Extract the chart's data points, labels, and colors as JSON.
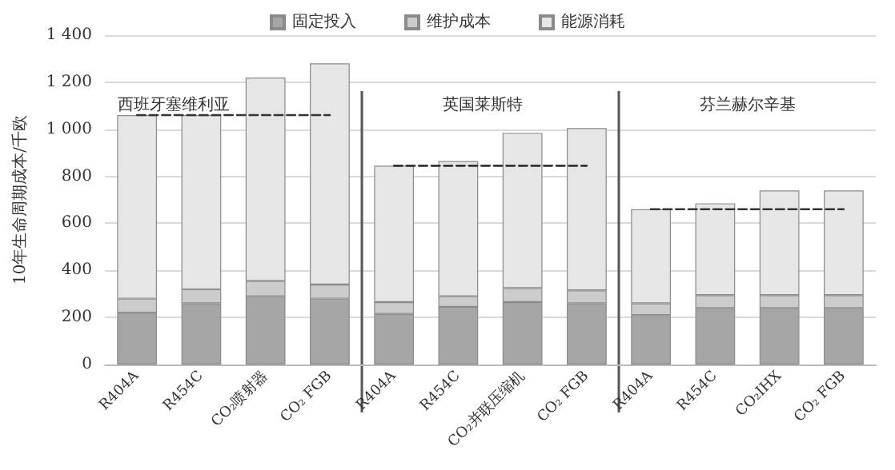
{
  "chart_data": {
    "type": "bar",
    "stacked": true,
    "ylabel": "10年生命周期成本/千欧",
    "categories": [
      "R404A",
      "R454C",
      "CO₂喷射器",
      "CO₂ FGB",
      "R404A",
      "R454C",
      "CO₂并联压缩机",
      "CO₂ FGB",
      "R404A",
      "R454C",
      "CO₂IHX",
      "CO₂ FGB"
    ],
    "series": [
      {
        "name": "固定投入",
        "color": "#a6a6a6",
        "values": [
          220,
          260,
          290,
          280,
          215,
          245,
          265,
          260,
          210,
          240,
          240,
          240
        ]
      },
      {
        "name": "维护成本",
        "color": "#cccccc",
        "values": [
          60,
          60,
          65,
          60,
          50,
          45,
          60,
          55,
          50,
          55,
          55,
          55
        ]
      },
      {
        "name": "能源消耗",
        "color": "#e6e6e6",
        "values": [
          780,
          740,
          865,
          940,
          580,
          575,
          660,
          690,
          400,
          390,
          445,
          445
        ]
      },
      {
        "type": "line",
        "color": "#333333",
        "line_style": "dashed",
        "marker": "none",
        "values": [
          1060,
          1060,
          1060,
          1060,
          null,
          null,
          null,
          null,
          null,
          null,
          null,
          null
        ]
      },
      {
        "type": "line",
        "color": "#333333",
        "line_style": "dashed",
        "marker": "none",
        "values": [
          null,
          null,
          null,
          null,
          845,
          845,
          845,
          845,
          null,
          null,
          null,
          null
        ]
      },
      {
        "type": "line",
        "color": "#333333",
        "line_style": "dashed",
        "marker": "none",
        "values": [
          null,
          null,
          null,
          null,
          null,
          null,
          null,
          null,
          660,
          660,
          660,
          660
        ]
      }
    ],
    "annotations": [
      "西班牙塞维利亚",
      "英国莱斯特",
      "芬兰赫尔辛基"
    ],
    "ylim": [
      0,
      1400
    ],
    "yticks": [
      0,
      200,
      400,
      600,
      800,
      {
        "value": 1000,
        "label": "1 000"
      },
      {
        "value": 1200,
        "label": "1 200"
      },
      {
        "value": 1400,
        "label": "1 400"
      }
    ],
    "grid": "y",
    "legend": "top"
  }
}
